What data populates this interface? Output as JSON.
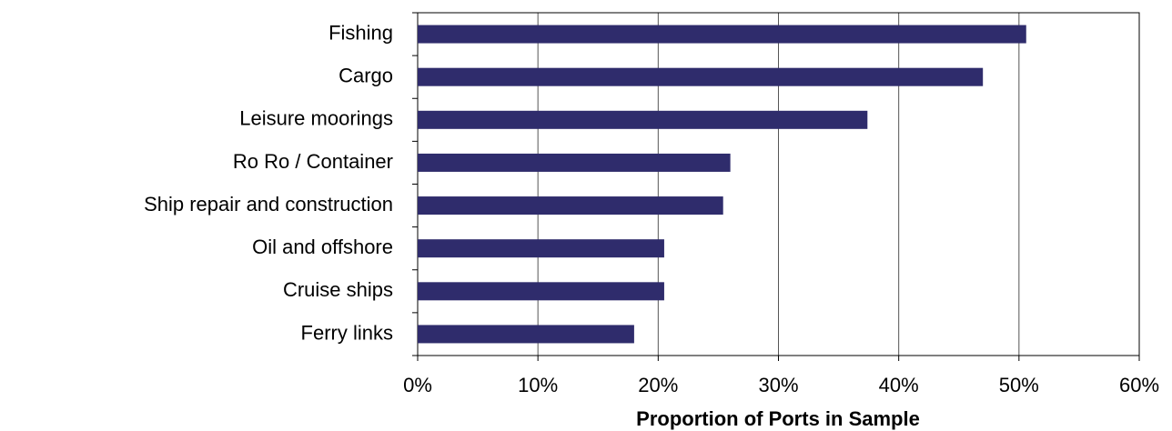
{
  "chart_data": {
    "type": "hbar",
    "x_label": "Proportion of Ports in Sample",
    "categories": [
      "Fishing",
      "Cargo",
      "Leisure moorings",
      "Ro Ro / Container",
      "Ship repair and construction",
      "Oil and offshore ",
      "Cruise ships",
      "Ferry links"
    ],
    "values": [
      50.6,
      47.0,
      37.4,
      26.0,
      25.4,
      20.5,
      20.5,
      18.0
    ],
    "color": "#2f2c6c",
    "xlim": [
      0,
      60
    ],
    "xticks": [
      {
        "value": 0,
        "label": "0%"
      },
      {
        "value": 10,
        "label": "10%"
      },
      {
        "value": 20,
        "label": "20%"
      },
      {
        "value": 30,
        "label": "30%"
      },
      {
        "value": 40,
        "label": "40%"
      },
      {
        "value": 50,
        "label": "50%"
      },
      {
        "value": 60,
        "label": "60%"
      }
    ],
    "grid": true
  }
}
